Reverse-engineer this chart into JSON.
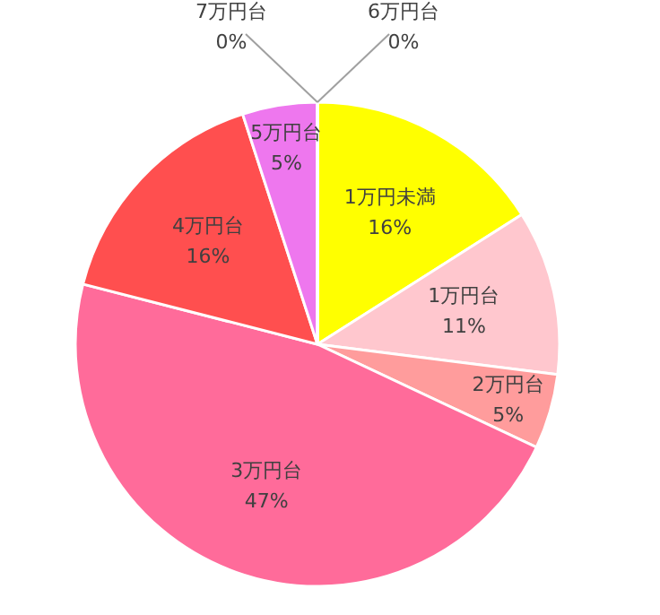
{
  "chart_data": {
    "type": "pie",
    "categories": [
      "1万円未満",
      "1万円台",
      "2万円台",
      "3万円台",
      "4万円台",
      "5万円台",
      "6万円台",
      "7万円台"
    ],
    "values": [
      16,
      11,
      5,
      47,
      16,
      5,
      0,
      0
    ],
    "value_labels": [
      "16%",
      "11%",
      "5%",
      "47%",
      "16%",
      "5%",
      "0%",
      "0%"
    ],
    "colors": [
      "#ffff00",
      "#ffc7ce",
      "#ff9c9c",
      "#ff6b9a",
      "#ff4f4f",
      "#ee77ee",
      "#c0c0c0",
      "#c0c0c0"
    ]
  }
}
